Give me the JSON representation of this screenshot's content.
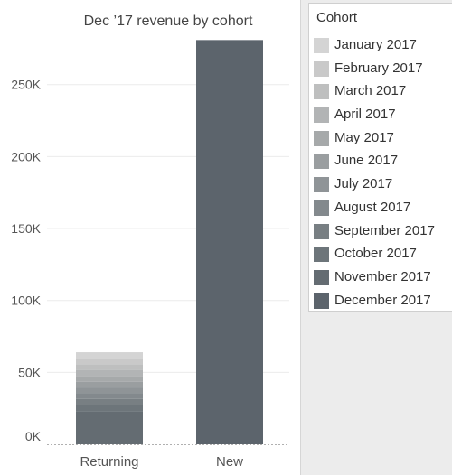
{
  "chart_data": {
    "type": "bar",
    "stacked": true,
    "title": "Dec ’17 revenue by cohort",
    "xlabel": "",
    "ylabel": "",
    "categories": [
      "Returning",
      "New"
    ],
    "ylim": [
      0,
      290000
    ],
    "yticks": [
      0,
      50000,
      100000,
      150000,
      200000,
      250000
    ],
    "ytick_labels": [
      "0K",
      "50K",
      "100K",
      "150K",
      "200K",
      "250K"
    ],
    "grid": true,
    "legend_position": "right",
    "series": [
      {
        "name": "January 2017",
        "color": "#d4d4d4",
        "values": [
          4500,
          0
        ]
      },
      {
        "name": "February 2017",
        "color": "#c9c9c9",
        "values": [
          4000,
          0
        ]
      },
      {
        "name": "March 2017",
        "color": "#bebfbf",
        "values": [
          4000,
          0
        ]
      },
      {
        "name": "April 2017",
        "color": "#b2b4b5",
        "values": [
          4000,
          0
        ]
      },
      {
        "name": "May 2017",
        "color": "#a6a9aa",
        "values": [
          4000,
          0
        ]
      },
      {
        "name": "June 2017",
        "color": "#9a9ea0",
        "values": [
          4000,
          0
        ]
      },
      {
        "name": "July 2017",
        "color": "#8f9497",
        "values": [
          4000,
          0
        ]
      },
      {
        "name": "August 2017",
        "color": "#83898d",
        "values": [
          4000,
          0
        ]
      },
      {
        "name": "September 2017",
        "color": "#787f83",
        "values": [
          4000,
          0
        ]
      },
      {
        "name": "October 2017",
        "color": "#6d757a",
        "values": [
          4500,
          0
        ]
      },
      {
        "name": "November 2017",
        "color": "#646c72",
        "values": [
          23000,
          0
        ]
      },
      {
        "name": "December 2017",
        "color": "#5c646c",
        "values": [
          0,
          281000
        ]
      }
    ]
  },
  "legend": {
    "title": "Cohort"
  },
  "colors": {
    "grid": "#ececec",
    "zero_line": "#b0b0b0",
    "axis_text": "#555555",
    "title_text": "#444444"
  }
}
